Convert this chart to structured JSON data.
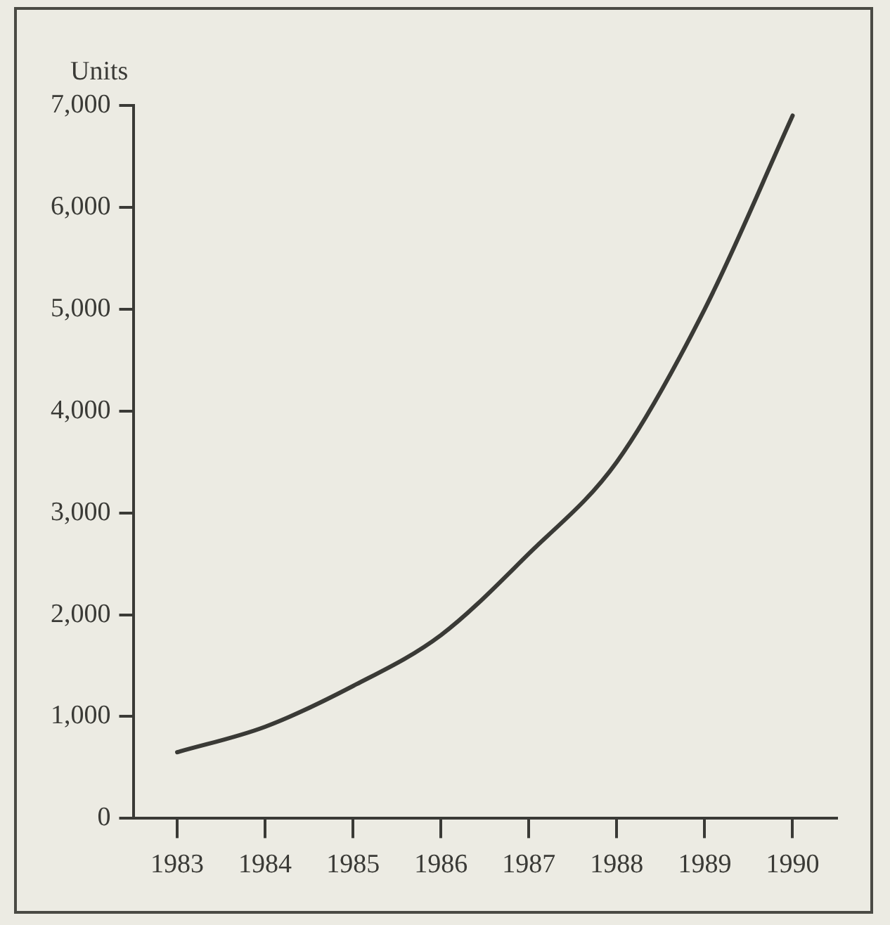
{
  "chart_data": {
    "type": "line",
    "ylabel": "Units",
    "categories": [
      "1983",
      "1984",
      "1985",
      "1986",
      "1987",
      "1988",
      "1989",
      "1990"
    ],
    "series": [
      {
        "color": "#3a3a36",
        "values": [
          650,
          900,
          1300,
          1800,
          2600,
          3500,
          5000,
          6900
        ]
      }
    ],
    "ylim": [
      0,
      7000
    ],
    "yticks": [
      0,
      {
        "value": 1000,
        "label": "1,000"
      },
      {
        "value": 2000,
        "label": "2,000"
      },
      {
        "value": 3000,
        "label": "3,000"
      },
      {
        "value": 4000,
        "label": "4,000"
      },
      {
        "value": 5000,
        "label": "5,000"
      },
      {
        "value": 6000,
        "label": "6,000"
      },
      {
        "value": 7000,
        "label": "7,000"
      }
    ],
    "grid": false,
    "legend": false,
    "marker": "none",
    "line_style": "solid"
  }
}
